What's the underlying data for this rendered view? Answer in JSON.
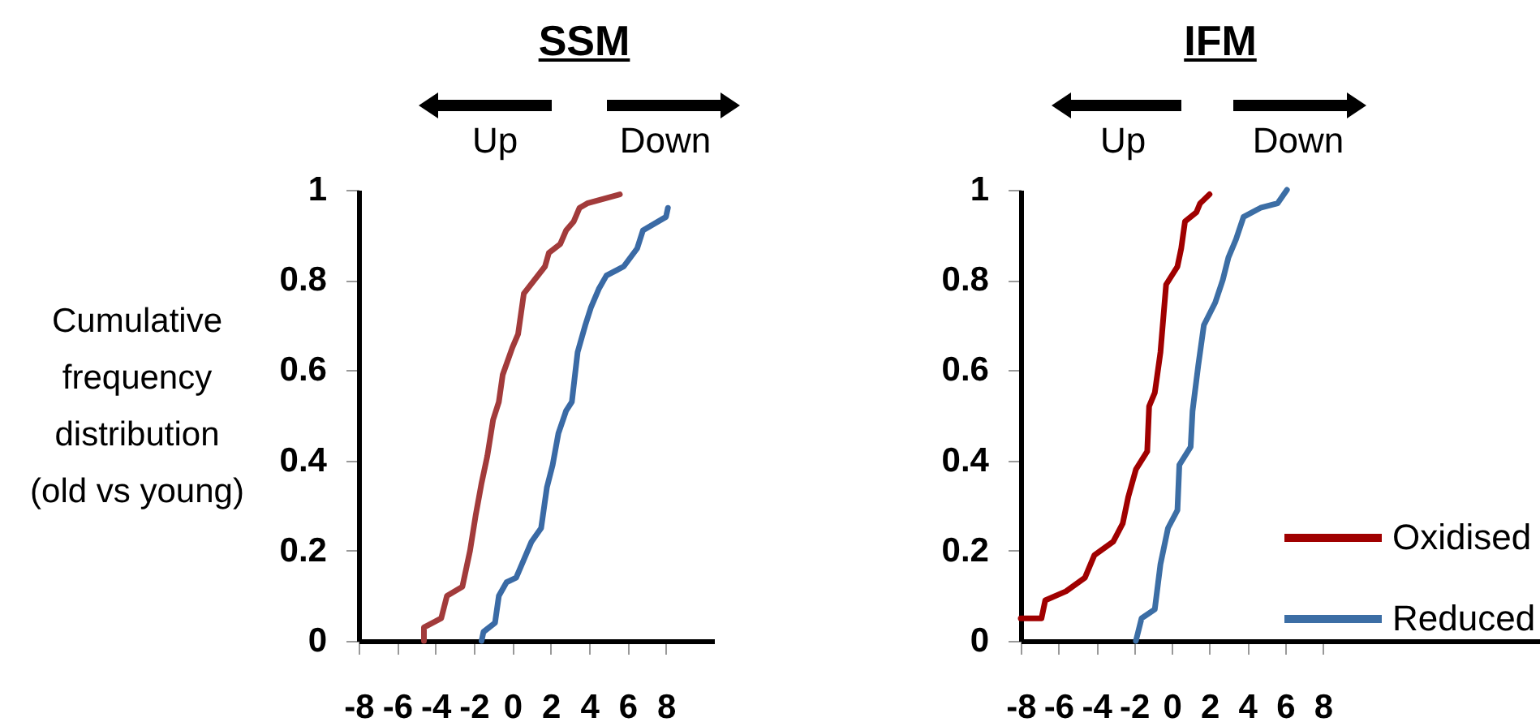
{
  "chart_data": [
    {
      "type": "line",
      "title": "SSM",
      "ylabel": "Cumulative frequency distribution (old vs young)",
      "annotations": [
        "Up",
        "Down"
      ],
      "xlim": [
        -8,
        10.5
      ],
      "xticks": [
        -8,
        -6,
        -4,
        -2,
        0,
        2,
        4,
        6,
        8
      ],
      "ylim": [
        0,
        1
      ],
      "yticks": [
        0,
        0.2,
        0.4,
        0.6,
        0.8,
        1
      ],
      "grid": false,
      "legend": false,
      "series": [
        {
          "color": "#a23b3b",
          "x": [
            -4.6,
            -4.6,
            -3.7,
            -3.4,
            -2.6,
            -2.2,
            -1.9,
            -1.6,
            -1.3,
            -1.0,
            -0.7,
            -0.5,
            0.0,
            0.3,
            0.6,
            1.7,
            1.9,
            2.5,
            2.8,
            3.2,
            3.5,
            3.9,
            5.6
          ],
          "values": [
            0,
            0.03,
            0.05,
            0.1,
            0.12,
            0.2,
            0.28,
            0.35,
            0.41,
            0.49,
            0.53,
            0.59,
            0.65,
            0.68,
            0.77,
            0.83,
            0.86,
            0.88,
            0.91,
            0.93,
            0.96,
            0.97,
            0.99
          ]
        },
        {
          "color": "#3a6aa5",
          "x": [
            -1.6,
            -1.5,
            -0.9,
            -0.7,
            -0.3,
            0.2,
            0.7,
            1.0,
            1.5,
            1.8,
            2.1,
            2.4,
            2.8,
            3.1,
            3.4,
            3.8,
            4.1,
            4.5,
            4.9,
            5.8,
            6.5,
            6.8,
            8.0,
            8.1
          ],
          "values": [
            0,
            0.02,
            0.04,
            0.1,
            0.13,
            0.14,
            0.19,
            0.22,
            0.25,
            0.34,
            0.39,
            0.46,
            0.51,
            0.53,
            0.64,
            0.7,
            0.74,
            0.78,
            0.81,
            0.83,
            0.87,
            0.91,
            0.94,
            0.96
          ]
        }
      ]
    },
    {
      "type": "line",
      "title": "IFM",
      "annotations": [
        "Up",
        "Down"
      ],
      "xlim": [
        -8,
        19.5
      ],
      "xticks": [
        -8,
        -6,
        -4,
        -2,
        0,
        2,
        4,
        6,
        8
      ],
      "ylim": [
        0,
        1
      ],
      "yticks": [
        0,
        0.2,
        0.4,
        0.6,
        0.8,
        1
      ],
      "grid": false,
      "legend": "bottom right",
      "series": [
        {
          "name": "Oxidised",
          "color": "#a00000",
          "x": [
            -8.0,
            -6.9,
            -6.7,
            -5.6,
            -4.6,
            -4.1,
            -3.1,
            -2.6,
            -2.3,
            -1.9,
            -1.3,
            -1.2,
            -0.9,
            -0.6,
            -0.3,
            0.3,
            0.5,
            0.7,
            1.3,
            1.5,
            2.0
          ],
          "values": [
            0.05,
            0.05,
            0.09,
            0.11,
            0.14,
            0.19,
            0.22,
            0.26,
            0.32,
            0.38,
            0.42,
            0.52,
            0.55,
            0.64,
            0.79,
            0.83,
            0.87,
            0.93,
            0.95,
            0.97,
            0.99
          ]
        },
        {
          "name": "Reduced",
          "color": "#3c6ea5",
          "x": [
            -1.9,
            -1.6,
            -0.9,
            -0.6,
            -0.2,
            0.3,
            0.4,
            1.0,
            1.1,
            1.4,
            1.7,
            2.3,
            2.7,
            3.0,
            3.4,
            3.8,
            4.7,
            5.6,
            6.1
          ],
          "values": [
            0,
            0.05,
            0.07,
            0.17,
            0.25,
            0.29,
            0.39,
            0.43,
            0.51,
            0.61,
            0.7,
            0.75,
            0.8,
            0.85,
            0.89,
            0.94,
            0.96,
            0.97,
            1.0
          ]
        }
      ]
    }
  ]
}
